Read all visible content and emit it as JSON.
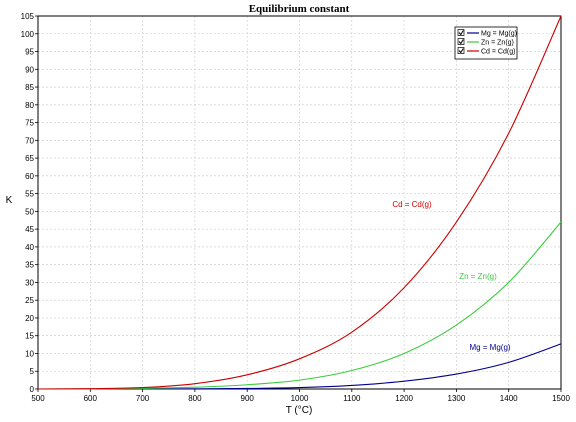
{
  "chart_data": {
    "type": "line",
    "title": "Equilibrium constant",
    "xlabel": "T (°C)",
    "ylabel": "K",
    "xlim": [
      500,
      1500
    ],
    "ylim": [
      0,
      105
    ],
    "xticks": [
      500,
      600,
      700,
      800,
      900,
      1000,
      1100,
      1200,
      1300,
      1400,
      1500
    ],
    "yticks": [
      0,
      5,
      10,
      15,
      20,
      25,
      30,
      35,
      40,
      45,
      50,
      55,
      60,
      65,
      70,
      75,
      80,
      85,
      90,
      95,
      100,
      105
    ],
    "grid": true,
    "legend_position": "top-right",
    "series": [
      {
        "name": "Mg = Mg(g)",
        "color": "#00008b",
        "x": [
          500,
          600,
          700,
          800,
          900,
          1000,
          1100,
          1200,
          1300,
          1400,
          1500
        ],
        "y": [
          0.0,
          0.0,
          0.0,
          0.05,
          0.15,
          0.4,
          1.0,
          2.2,
          4.2,
          7.5,
          12.7
        ],
        "annotation": "Mg = Mg(g)"
      },
      {
        "name": "Zn = Zn(g)",
        "color": "#3ccc3c",
        "x": [
          500,
          600,
          700,
          800,
          900,
          1000,
          1100,
          1200,
          1300,
          1400,
          1500
        ],
        "y": [
          0.0,
          0.05,
          0.2,
          0.5,
          1.2,
          2.5,
          5.2,
          10.0,
          18.0,
          30.0,
          47.0
        ],
        "annotation": "Zn = Zn(g)"
      },
      {
        "name": "Cd = Cd(g)",
        "color": "#cc0000",
        "x": [
          500,
          600,
          700,
          800,
          900,
          1000,
          1100,
          1200,
          1300,
          1400,
          1500
        ],
        "y": [
          0.0,
          0.1,
          0.4,
          1.5,
          4.0,
          8.5,
          16.0,
          28.5,
          47.0,
          72.0,
          105.0
        ],
        "annotation": "Cd = Cd(g)"
      }
    ]
  }
}
